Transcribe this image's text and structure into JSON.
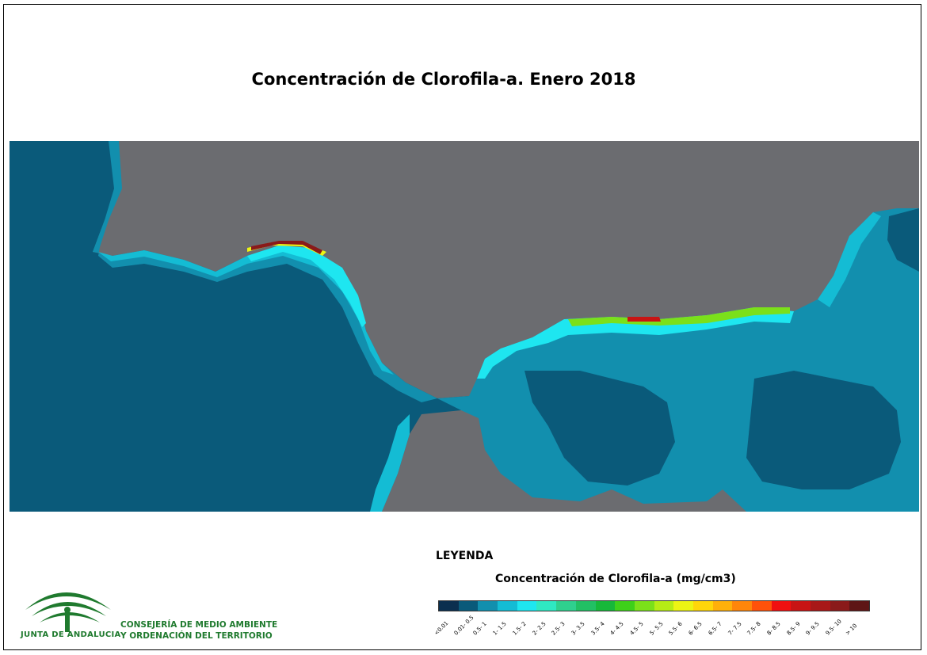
{
  "title": "Concentración de Clorofila-a. Enero 2018",
  "legend": {
    "heading": "LEYENDA",
    "subtitle": "Concentración de Clorofila-a (mg/cm3)",
    "classes": [
      {
        "label": "<0.01",
        "color": "#0b2f4f"
      },
      {
        "label": "0.01- 0.5",
        "color": "#0a5a7a"
      },
      {
        "label": "0.5- 1",
        "color": "#128fae"
      },
      {
        "label": "1- 1.5",
        "color": "#14bcd4"
      },
      {
        "label": "1.5- 2",
        "color": "#1ee6f0"
      },
      {
        "label": "2- 2.5",
        "color": "#2fe8c2"
      },
      {
        "label": "2.5- 3",
        "color": "#2fd08e"
      },
      {
        "label": "3- 3.5",
        "color": "#22c064"
      },
      {
        "label": "3.5- 4",
        "color": "#17b83a"
      },
      {
        "label": "4- 4.5",
        "color": "#3ed01a"
      },
      {
        "label": "4.5- 5",
        "color": "#7be01a"
      },
      {
        "label": "5- 5.5",
        "color": "#b6ec16"
      },
      {
        "label": "5.5- 6",
        "color": "#ecf414"
      },
      {
        "label": "6- 6.5",
        "color": "#ffd60a"
      },
      {
        "label": "6.5- 7",
        "color": "#ffb00a"
      },
      {
        "label": "7- 7.5",
        "color": "#ff860a"
      },
      {
        "label": "7.5- 8",
        "color": "#ff520a"
      },
      {
        "label": "8- 8.5",
        "color": "#f01010"
      },
      {
        "label": "8.5- 9",
        "color": "#c81414"
      },
      {
        "label": "9- 9.5",
        "color": "#a81818"
      },
      {
        "label": "9.5- 10",
        "color": "#8a1a1a"
      },
      {
        "label": "> 10",
        "color": "#5e1616"
      }
    ]
  },
  "logo": {
    "org": "JUNTA DE ANDALUCIA",
    "dept_line1": "CONSEJERÍA DE MEDIO AMBIENTE",
    "dept_line2": "Y ORDENACIÓN DEL TERRITORIO",
    "color": "#1f7a2e"
  },
  "map_colors": {
    "land": "#6b6c70",
    "ocean_deep": "#0a5a7a",
    "ocean_mid": "#128fae",
    "coastal": "#14bcd4",
    "high": "#1ee6f0"
  }
}
